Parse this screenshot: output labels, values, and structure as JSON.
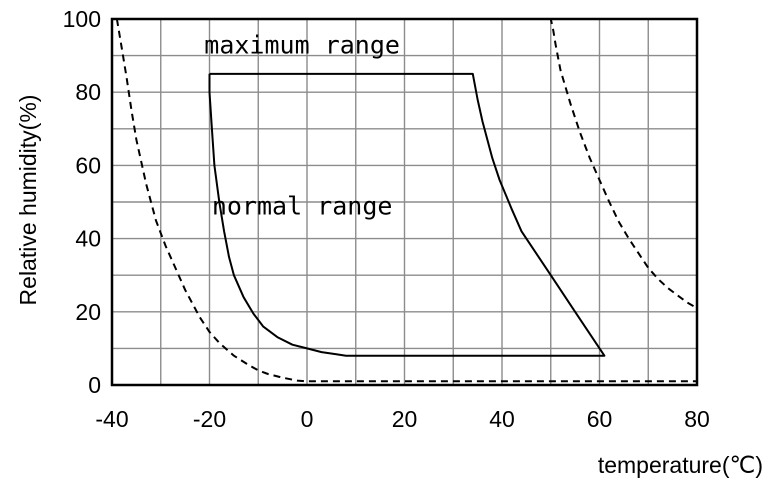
{
  "chart_data": {
    "type": "line",
    "xlabel": "temperature(℃)",
    "ylabel": "Relative humidity(%)",
    "xlim": [
      -40,
      80
    ],
    "ylim": [
      0,
      100
    ],
    "x_ticks": [
      "-40",
      "-20",
      "0",
      "20",
      "40",
      "60",
      "80"
    ],
    "y_ticks": [
      "0",
      "20",
      "40",
      "60",
      "80",
      "100"
    ],
    "grid": true,
    "grid_step": {
      "x": 10,
      "y": 10
    },
    "annotations": [
      {
        "text": "maximum range",
        "x": -1,
        "y": 93
      },
      {
        "text": "normal range",
        "x": -1,
        "y": 49
      }
    ],
    "series": [
      {
        "style": "solid",
        "color": "#000000",
        "x": [
          -20,
          -20,
          -19.5,
          -19,
          -18,
          -17,
          -16,
          -15,
          -13,
          -11,
          -9,
          -6,
          -3,
          0,
          3,
          6,
          8,
          20,
          40,
          61,
          55,
          50,
          47,
          44,
          42,
          39.5,
          38,
          36,
          35,
          34,
          20,
          0,
          -20
        ],
        "y": [
          85,
          80,
          70,
          60,
          50,
          42,
          35,
          30,
          24,
          19.5,
          16,
          13,
          11,
          10,
          9,
          8.4,
          8,
          8,
          8,
          8,
          20,
          30,
          36,
          42,
          48,
          56,
          62,
          72,
          78,
          85,
          85,
          85,
          85
        ]
      },
      {
        "style": "dashed",
        "color": "#000000",
        "x": [
          -39,
          -38,
          -37,
          -36,
          -35,
          -33,
          -31,
          -29,
          -27,
          -25,
          -22,
          -20,
          -18,
          -15,
          -12,
          -10,
          -8,
          -5,
          -2,
          0,
          3,
          6,
          10,
          20,
          40,
          60,
          80
        ],
        "y": [
          100,
          92,
          84,
          75,
          67,
          55,
          45,
          38,
          32,
          26,
          18.5,
          14.5,
          11.5,
          8,
          5.5,
          4,
          3,
          2,
          1.2,
          1,
          1,
          1,
          1,
          1,
          1,
          1,
          1
        ]
      },
      {
        "style": "dashed",
        "color": "#000000",
        "x": [
          -39,
          -20,
          0,
          20,
          40,
          50,
          50.5,
          51,
          52,
          54,
          56,
          58,
          60,
          62,
          64,
          66,
          68,
          70,
          72,
          74,
          76,
          78,
          80,
          80
        ],
        "y": [
          100,
          100,
          100,
          100,
          100,
          100,
          97,
          93,
          86,
          77,
          69,
          62,
          56,
          50,
          44.5,
          40,
          36,
          32,
          29,
          26.5,
          24.5,
          22.5,
          21,
          1
        ]
      }
    ]
  }
}
